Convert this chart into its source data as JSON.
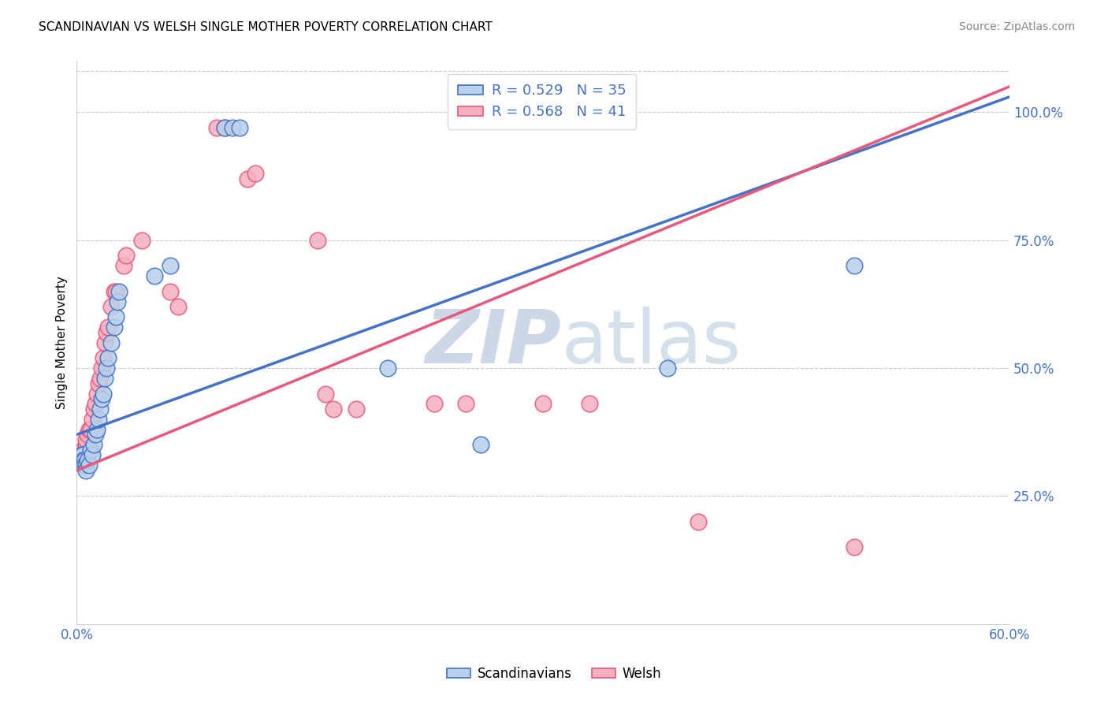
{
  "title": "SCANDINAVIAN VS WELSH SINGLE MOTHER POVERTY CORRELATION CHART",
  "source": "Source: ZipAtlas.com",
  "ylabel": "Single Mother Poverty",
  "x_min": 0.0,
  "x_max": 0.6,
  "y_min": 0.0,
  "y_max": 1.1,
  "y_ticks": [
    0.25,
    0.5,
    0.75,
    1.0
  ],
  "scandinavian_R": 0.529,
  "scandinavian_N": 35,
  "welsh_R": 0.568,
  "welsh_N": 41,
  "watermark_zip": "ZIP",
  "watermark_atlas": "atlas",
  "legend_labels": [
    "Scandinavians",
    "Welsh"
  ],
  "blue_color": "#b8d0ea",
  "blue_line_color": "#4472c4",
  "pink_color": "#f5b0c0",
  "pink_line_color": "#e8587a",
  "sc_line_x0": 0.0,
  "sc_line_y0": 0.37,
  "sc_line_x1": 0.6,
  "sc_line_y1": 1.03,
  "wl_line_x0": 0.0,
  "wl_line_y0": 0.3,
  "wl_line_x1": 0.6,
  "wl_line_y1": 1.05,
  "scandinavian_points": [
    [
      0.003,
      0.33
    ],
    [
      0.004,
      0.33
    ],
    [
      0.004,
      0.32
    ],
    [
      0.005,
      0.32
    ],
    [
      0.005,
      0.31
    ],
    [
      0.006,
      0.31
    ],
    [
      0.006,
      0.3
    ],
    [
      0.007,
      0.32
    ],
    [
      0.008,
      0.31
    ],
    [
      0.009,
      0.34
    ],
    [
      0.01,
      0.33
    ],
    [
      0.011,
      0.35
    ],
    [
      0.012,
      0.37
    ],
    [
      0.013,
      0.38
    ],
    [
      0.014,
      0.4
    ],
    [
      0.015,
      0.42
    ],
    [
      0.016,
      0.44
    ],
    [
      0.017,
      0.45
    ],
    [
      0.018,
      0.48
    ],
    [
      0.019,
      0.5
    ],
    [
      0.02,
      0.52
    ],
    [
      0.022,
      0.55
    ],
    [
      0.024,
      0.58
    ],
    [
      0.025,
      0.6
    ],
    [
      0.026,
      0.63
    ],
    [
      0.027,
      0.65
    ],
    [
      0.05,
      0.68
    ],
    [
      0.06,
      0.7
    ],
    [
      0.095,
      0.97
    ],
    [
      0.1,
      0.97
    ],
    [
      0.105,
      0.97
    ],
    [
      0.2,
      0.5
    ],
    [
      0.26,
      0.35
    ],
    [
      0.38,
      0.5
    ],
    [
      0.5,
      0.7
    ]
  ],
  "welsh_points": [
    [
      0.003,
      0.33
    ],
    [
      0.004,
      0.34
    ],
    [
      0.005,
      0.33
    ],
    [
      0.006,
      0.35
    ],
    [
      0.006,
      0.36
    ],
    [
      0.007,
      0.37
    ],
    [
      0.008,
      0.38
    ],
    [
      0.009,
      0.38
    ],
    [
      0.01,
      0.4
    ],
    [
      0.011,
      0.42
    ],
    [
      0.012,
      0.43
    ],
    [
      0.013,
      0.45
    ],
    [
      0.014,
      0.47
    ],
    [
      0.015,
      0.48
    ],
    [
      0.016,
      0.5
    ],
    [
      0.017,
      0.52
    ],
    [
      0.018,
      0.55
    ],
    [
      0.019,
      0.57
    ],
    [
      0.02,
      0.58
    ],
    [
      0.022,
      0.62
    ],
    [
      0.024,
      0.65
    ],
    [
      0.025,
      0.65
    ],
    [
      0.03,
      0.7
    ],
    [
      0.032,
      0.72
    ],
    [
      0.042,
      0.75
    ],
    [
      0.06,
      0.65
    ],
    [
      0.065,
      0.62
    ],
    [
      0.09,
      0.97
    ],
    [
      0.095,
      0.97
    ],
    [
      0.11,
      0.87
    ],
    [
      0.115,
      0.88
    ],
    [
      0.155,
      0.75
    ],
    [
      0.16,
      0.45
    ],
    [
      0.165,
      0.42
    ],
    [
      0.18,
      0.42
    ],
    [
      0.23,
      0.43
    ],
    [
      0.25,
      0.43
    ],
    [
      0.3,
      0.43
    ],
    [
      0.33,
      0.43
    ],
    [
      0.4,
      0.2
    ],
    [
      0.5,
      0.15
    ]
  ]
}
